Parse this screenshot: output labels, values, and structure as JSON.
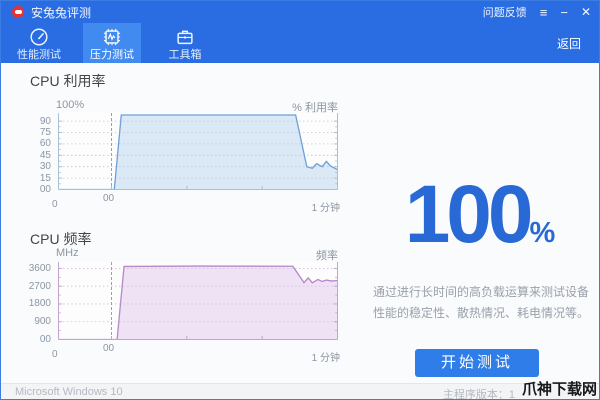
{
  "window": {
    "title": "安兔兔评测",
    "feedback_label": "问题反馈",
    "menu_icon": "≡",
    "minimize_icon": "−",
    "close_icon": "✕",
    "back_label": "返回"
  },
  "tabs": [
    {
      "label": "性能测试",
      "icon": "speedometer-icon",
      "active": false
    },
    {
      "label": "压力测试",
      "icon": "chip-icon",
      "active": true
    },
    {
      "label": "工具箱",
      "icon": "toolbox-icon",
      "active": false
    }
  ],
  "panel": {
    "percent_value": "100",
    "percent_sign": "%",
    "description_line1": "通过进行长时间的高负载运算来测试设备",
    "description_line2": "性能的稳定性、散热情况、耗电情况等。",
    "start_button_label": "开始测试"
  },
  "status_bar": {
    "os": "Microsoft Windows 10",
    "version_label": "主程序版本：1",
    "watermark": "爪神下载网"
  },
  "colors": {
    "header_blue": "#2a6de2",
    "active_tab_blue": "#418af0",
    "accent": "#2969d6",
    "button": "#2f7de9",
    "logo_red": "#e8322e"
  },
  "chart_data": [
    {
      "type": "area",
      "title": "CPU 利用率",
      "y_axis_top_label": "100%",
      "y_right_label": "% 利用率",
      "ylim": [
        0,
        100
      ],
      "y_ticks": [
        {
          "value": 90,
          "label": "90"
        },
        {
          "value": 75,
          "label": "75"
        },
        {
          "value": 60,
          "label": "60"
        },
        {
          "value": 45,
          "label": "45"
        },
        {
          "value": 30,
          "label": "30"
        },
        {
          "value": 15,
          "label": "15"
        },
        {
          "value": 0,
          "label": "00"
        }
      ],
      "x_ticks": [
        {
          "pos": 0,
          "label": "0"
        },
        {
          "pos": 19,
          "label": "00"
        },
        {
          "pos": 100,
          "label": "1 分钟"
        }
      ],
      "bottom_ticks": [
        19,
        46,
        73,
        100
      ],
      "grid": true,
      "series": [
        {
          "name": "CPU 利用率",
          "points": [
            [
              0,
              0
            ],
            [
              20,
              0
            ],
            [
              22.5,
              98
            ],
            [
              50,
              98
            ],
            [
              85,
              98
            ],
            [
              89,
              30
            ],
            [
              91,
              28
            ],
            [
              92.5,
              34
            ],
            [
              94.5,
              30
            ],
            [
              96,
              37
            ],
            [
              97.5,
              31
            ],
            [
              100,
              26
            ]
          ]
        }
      ],
      "line_color": "#6ba0d7",
      "fill_color": "#dbe8f5",
      "axis_color": "#a9bfd6",
      "grid_color": "#b9c8d8",
      "event_line_color": "#8e99a6"
    },
    {
      "type": "area",
      "title": "CPU 频率",
      "y_axis_top_label": "MHz",
      "y_right_label": "频率",
      "ylim": [
        0,
        3900
      ],
      "y_ticks": [
        {
          "value": 3600,
          "label": "3600"
        },
        {
          "value": 2700,
          "label": "2700"
        },
        {
          "value": 1800,
          "label": "1800"
        },
        {
          "value": 900,
          "label": "900"
        },
        {
          "value": 0,
          "label": "00"
        }
      ],
      "x_ticks": [
        {
          "pos": 0,
          "label": "0"
        },
        {
          "pos": 19,
          "label": "00"
        },
        {
          "pos": 100,
          "label": "1 分钟"
        }
      ],
      "bottom_ticks": [
        19,
        46,
        73,
        100
      ],
      "grid": true,
      "series": [
        {
          "name": "CPU 频率",
          "points": [
            [
              0,
              0
            ],
            [
              21,
              0
            ],
            [
              23.5,
              3700
            ],
            [
              50,
              3720
            ],
            [
              84,
              3710
            ],
            [
              88,
              2880
            ],
            [
              89.5,
              3120
            ],
            [
              91,
              2870
            ],
            [
              93,
              3040
            ],
            [
              94.5,
              2940
            ],
            [
              96,
              3010
            ],
            [
              98,
              2960
            ],
            [
              100,
              2990
            ]
          ]
        }
      ],
      "line_color": "#b488c9",
      "fill_color": "#eee2f4",
      "axis_color": "#c2a3d2",
      "grid_color": "#d2bede",
      "event_line_color": "#8e99a6"
    }
  ]
}
